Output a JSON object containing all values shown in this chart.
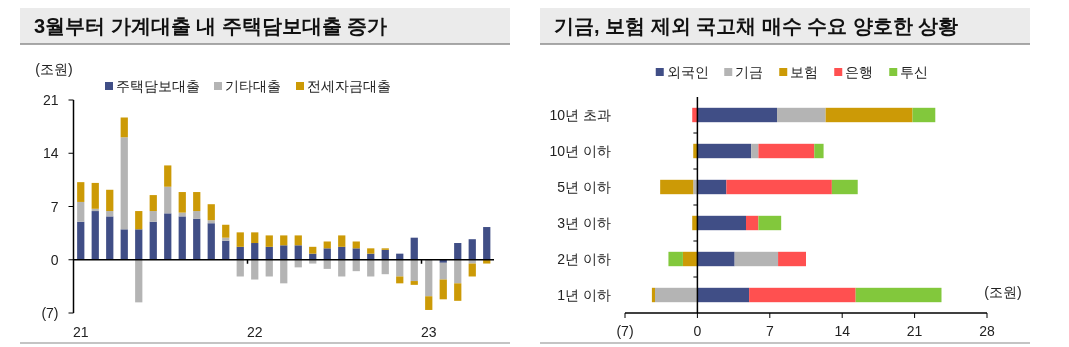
{
  "chart_data": [
    {
      "type": "bar",
      "title": "3월부터 가계대출 내 주택담보대출 증가",
      "ylabel": "(조원)",
      "stacked": true,
      "legend": "top",
      "categories": [
        "21",
        null,
        null,
        null,
        null,
        null,
        null,
        null,
        null,
        null,
        null,
        null,
        "22",
        null,
        null,
        null,
        null,
        null,
        null,
        null,
        null,
        null,
        null,
        null,
        "23",
        null,
        null,
        null,
        null
      ],
      "ylim": [
        -7,
        21
      ],
      "yticks": [
        21,
        14,
        7,
        0,
        {
          "value": -7,
          "label": "(7)"
        }
      ],
      "series": [
        {
          "name": "주택담보대출",
          "color": "#404e86",
          "values": [
            5.0,
            6.4,
            5.7,
            4.0,
            4.0,
            5.0,
            6.1,
            5.7,
            5.4,
            4.8,
            2.5,
            1.7,
            2.2,
            1.7,
            1.9,
            1.9,
            0.8,
            1.5,
            1.7,
            1.5,
            0.8,
            1.3,
            0.8,
            2.9,
            0,
            -0.4,
            2.2,
            2.7,
            4.3
          ]
        },
        {
          "name": "기타대출",
          "color": "#b4b4b4",
          "values": [
            2.6,
            0.3,
            0.7,
            12.1,
            -5.6,
            1.4,
            3.5,
            0.5,
            1.0,
            0.4,
            0.4,
            -2.2,
            -2.6,
            -2.2,
            -3.1,
            -1.0,
            -0.5,
            -1.2,
            -2.2,
            -1.5,
            -2.2,
            -1.9,
            -2.2,
            -2.8,
            -4.8,
            -2.2,
            -3.1,
            -0.5,
            0
          ]
        },
        {
          "name": "전세자금대출",
          "color": "#cc9a06",
          "values": [
            2.6,
            3.4,
            2.8,
            2.6,
            2.4,
            2.1,
            2.8,
            2.7,
            2.5,
            2.1,
            1.7,
            1.9,
            1.4,
            1.5,
            1.3,
            1.3,
            0.9,
            0.9,
            1.5,
            0.9,
            0.7,
            0.2,
            -0.9,
            -0.5,
            -1.8,
            -2.6,
            -2.3,
            -1.7,
            -0.5
          ]
        }
      ]
    },
    {
      "type": "bar",
      "title": "기금, 보험 제외 국고채 매수 수요 양호한 상황",
      "xlabel": "(조원)",
      "stacked": true,
      "orientation": "horizontal",
      "legend": "top",
      "categories": [
        "10년 초과",
        "10년 이하",
        "5년 이하",
        "3년 이하",
        "2년 이하",
        "1년 이하"
      ],
      "xlim": [
        -7,
        28
      ],
      "xticks": [
        {
          "value": -7,
          "label": "(7)"
        },
        0,
        7,
        14,
        21,
        28
      ],
      "series": [
        {
          "name": "외국인",
          "color": "#404e86",
          "values": [
            7.7,
            5.2,
            2.8,
            4.7,
            3.6,
            5.0
          ]
        },
        {
          "name": "기금",
          "color": "#b4b4b4",
          "values": [
            4.7,
            0.7,
            -0.4,
            0,
            4.2,
            -4.1
          ]
        },
        {
          "name": "보험",
          "color": "#cc9a06",
          "values": [
            8.4,
            -0.4,
            -3.2,
            -0.5,
            -1.4,
            -0.3
          ]
        },
        {
          "name": "은행",
          "color": "#ff5050",
          "values": [
            -0.5,
            5.4,
            10.2,
            1.2,
            2.7,
            10.3
          ]
        },
        {
          "name": "투신",
          "color": "#82c83c",
          "values": [
            2.2,
            0.9,
            2.5,
            2.2,
            -1.4,
            8.3
          ]
        }
      ]
    }
  ]
}
